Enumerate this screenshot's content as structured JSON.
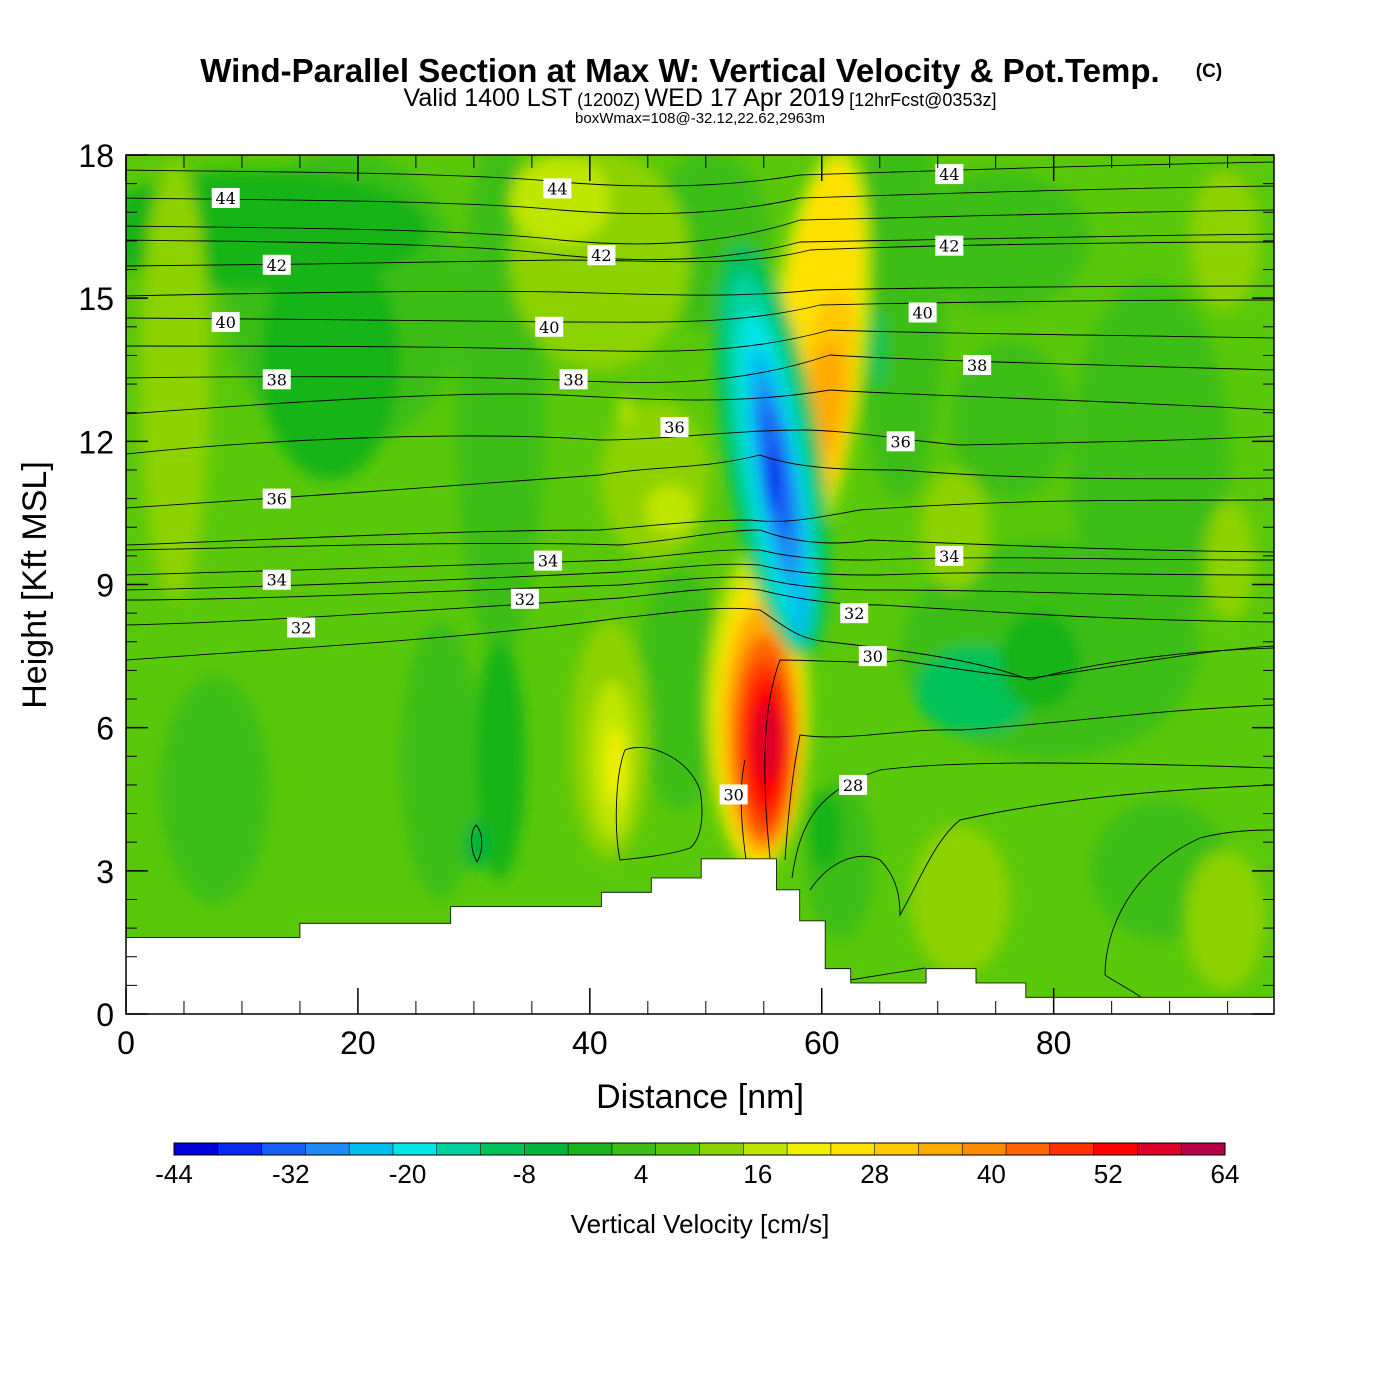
{
  "header": {
    "title": "Wind-Parallel Section at Max W: Vertical Velocity & Pot.Temp.",
    "copyright": "(C)",
    "valid_prefix": "Valid 1400 LST",
    "valid_utc": "(1200Z)",
    "valid_date": "WED 17 Apr 2019",
    "forecast": "[12hrFcst@0353z]",
    "boxwmax": "boxWmax=108@-32.12,22.62,2963m"
  },
  "chart_data": {
    "type": "heatmap",
    "title": "Wind-Parallel Section at Max W: Vertical Velocity & Pot.Temp.",
    "xlabel": "Distance [nm]",
    "ylabel": "Height [Kft MSL]",
    "xlim": [
      0,
      99
    ],
    "ylim": [
      0,
      18
    ],
    "x_ticks": [
      "0",
      "20",
      "40",
      "60",
      "80"
    ],
    "y_ticks": [
      "0",
      "3",
      "6",
      "9",
      "12",
      "15",
      "18"
    ],
    "fill_variable": "Vertical Velocity [cm/s]",
    "colorbar": {
      "label": "Vertical Velocity [cm/s]",
      "min": -44,
      "max": 64,
      "step": 4,
      "tick_labels": [
        "-44",
        "-32",
        "-20",
        "-8",
        "4",
        "16",
        "28",
        "40",
        "52",
        "64"
      ],
      "colors": [
        "#0000d8",
        "#0a28f0",
        "#1460f5",
        "#1e8cf5",
        "#00bef0",
        "#00e6e6",
        "#00d2a0",
        "#00c35a",
        "#00b43c",
        "#19b419",
        "#3cbe14",
        "#5ac80a",
        "#8cd200",
        "#bee600",
        "#f0f000",
        "#ffe100",
        "#ffc800",
        "#ffaa00",
        "#ff8c00",
        "#ff6400",
        "#ff3200",
        "#ff0000",
        "#dc0028",
        "#b40046"
      ]
    },
    "contour_variable": "Potential Temperature",
    "contour_labels": [
      {
        "x": 8.6,
        "y": 17.1,
        "text": "44"
      },
      {
        "x": 37.2,
        "y": 17.3,
        "text": "44"
      },
      {
        "x": 71.0,
        "y": 17.6,
        "text": "44"
      },
      {
        "x": 13.0,
        "y": 15.7,
        "text": "42"
      },
      {
        "x": 41.0,
        "y": 15.9,
        "text": "42"
      },
      {
        "x": 71.0,
        "y": 16.1,
        "text": "42"
      },
      {
        "x": 8.6,
        "y": 14.5,
        "text": "40"
      },
      {
        "x": 36.5,
        "y": 14.4,
        "text": "40"
      },
      {
        "x": 68.7,
        "y": 14.7,
        "text": "40"
      },
      {
        "x": 13.0,
        "y": 13.3,
        "text": "38"
      },
      {
        "x": 38.6,
        "y": 13.3,
        "text": "38"
      },
      {
        "x": 73.4,
        "y": 13.6,
        "text": "38"
      },
      {
        "x": 47.3,
        "y": 12.3,
        "text": "36"
      },
      {
        "x": 66.8,
        "y": 12.0,
        "text": "36"
      },
      {
        "x": 13.0,
        "y": 10.8,
        "text": "36"
      },
      {
        "x": 36.4,
        "y": 9.5,
        "text": "34"
      },
      {
        "x": 13.0,
        "y": 9.1,
        "text": "34"
      },
      {
        "x": 71.0,
        "y": 9.6,
        "text": "34"
      },
      {
        "x": 34.4,
        "y": 8.7,
        "text": "32"
      },
      {
        "x": 15.1,
        "y": 8.1,
        "text": "32"
      },
      {
        "x": 62.8,
        "y": 8.4,
        "text": "32"
      },
      {
        "x": 64.4,
        "y": 7.5,
        "text": "30"
      },
      {
        "x": 52.4,
        "y": 4.6,
        "text": "30"
      },
      {
        "x": 62.7,
        "y": 4.8,
        "text": "28"
      }
    ],
    "terrain_kft": [
      [
        0,
        1.6
      ],
      [
        15,
        1.6
      ],
      [
        15,
        1.9
      ],
      [
        28,
        1.9
      ],
      [
        28,
        2.25
      ],
      [
        41,
        2.25
      ],
      [
        41,
        2.55
      ],
      [
        45.3,
        2.55
      ],
      [
        45.3,
        2.85
      ],
      [
        49.6,
        2.85
      ],
      [
        49.6,
        3.25
      ],
      [
        56.1,
        3.25
      ],
      [
        56.1,
        2.6
      ],
      [
        58.1,
        2.6
      ],
      [
        58.1,
        1.95
      ],
      [
        60.3,
        1.95
      ],
      [
        60.3,
        0.95
      ],
      [
        62.5,
        0.95
      ],
      [
        62.5,
        0.65
      ],
      [
        69,
        0.65
      ],
      [
        69,
        0.95
      ],
      [
        73.3,
        0.95
      ],
      [
        73.3,
        0.65
      ],
      [
        77.6,
        0.65
      ],
      [
        77.6,
        0.35
      ],
      [
        99,
        0.35
      ]
    ]
  }
}
